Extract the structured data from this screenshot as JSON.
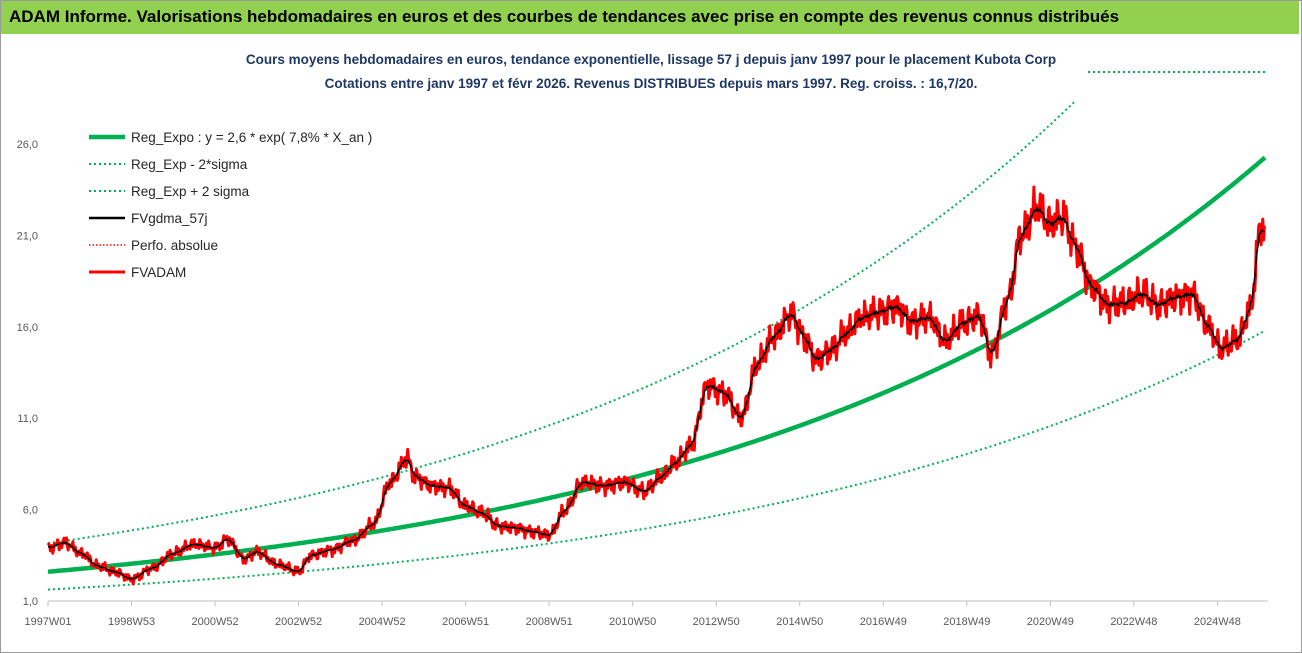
{
  "banner": {
    "text": "ADAM Informe. Valorisations hebdomadaires en euros et des courbes de tendances avec prise en compte des revenus connus distribués"
  },
  "chart_data": {
    "type": "line",
    "title": "Cours moyens hebdomadaires en euros, tendance exponentielle, lissage 57 j depuis janv 1997 pour le placement Kubota Corp",
    "subtitle": "Cotations entre janv 1997 et févr 2026. Revenus DISTRIBUES depuis mars 1997. Reg. croiss. : 16,7/20.",
    "xlabel": "",
    "ylabel": "",
    "x_ticks": [
      "1997W01",
      "1998W53",
      "2000W52",
      "2002W52",
      "2004W52",
      "2006W51",
      "2008W51",
      "2010W50",
      "2012W50",
      "2014W50",
      "2016W49",
      "2018W49",
      "2020W49",
      "2022W48",
      "2024W48"
    ],
    "y_ticks": [
      "1,0",
      "6,0",
      "11,0",
      "16,0",
      "21,0",
      "26,0"
    ],
    "ylim": [
      1,
      26
    ],
    "xlim": [
      1997.0,
      2026.15
    ],
    "grid": false,
    "legend_position": "top-left",
    "regression": {
      "a": 2.6,
      "rate": 0.078,
      "sigma_factor": 1.6
    },
    "series": [
      {
        "name": "Reg_Expo : y = 2,6 * exp( 7,8% *  X_an )",
        "color": "#00b050",
        "style": "solid-thick"
      },
      {
        "name": "Reg_Exp - 2*sigma",
        "color": "#00b050",
        "style": "dotted"
      },
      {
        "name": "Reg_Exp + 2 sigma",
        "color": "#00b050",
        "style": "dotted"
      },
      {
        "name": "FVgdma_57j",
        "color": "#000000",
        "style": "solid"
      },
      {
        "name": "Perfo. absolue",
        "color": "#ff0000",
        "style": "dotted"
      },
      {
        "name": "FVADAM",
        "color": "#ff0000",
        "style": "solid-thick"
      }
    ],
    "price_anchors": {
      "x": [
        1997.0,
        1997.4,
        1997.8,
        1998.2,
        1998.6,
        1999.0,
        1999.5,
        2000.0,
        2000.5,
        2001.0,
        2001.3,
        2001.7,
        2002.0,
        2002.5,
        2003.0,
        2003.3,
        2003.8,
        2004.3,
        2004.8,
        2005.2,
        2005.6,
        2005.8,
        2006.2,
        2006.6,
        2007.0,
        2007.4,
        2007.8,
        2008.2,
        2008.6,
        2009.0,
        2009.4,
        2009.8,
        2010.3,
        2010.8,
        2011.3,
        2011.7,
        2012.0,
        2012.4,
        2012.8,
        2013.2,
        2013.6,
        2014.0,
        2014.4,
        2014.8,
        2015.1,
        2015.4,
        2015.8,
        2016.1,
        2016.5,
        2016.9,
        2017.3,
        2017.7,
        2018.1,
        2018.5,
        2018.9,
        2019.3,
        2019.6,
        2020.0,
        2020.3,
        2020.7,
        2021.0,
        2021.3,
        2021.6,
        2022.0,
        2022.4,
        2022.8,
        2023.2,
        2023.6,
        2024.0,
        2024.4,
        2024.8,
        2025.1,
        2025.5,
        2025.8,
        2026.05
      ],
      "y": [
        3.9,
        4.2,
        3.6,
        2.9,
        2.6,
        2.2,
        2.8,
        3.6,
        4.1,
        3.9,
        4.4,
        3.3,
        3.7,
        3.0,
        2.6,
        3.5,
        3.8,
        4.3,
        5.2,
        7.5,
        8.8,
        7.8,
        7.3,
        7.2,
        6.2,
        5.8,
        5.1,
        5.0,
        4.8,
        4.6,
        6.0,
        7.5,
        7.3,
        7.5,
        7.0,
        7.8,
        8.5,
        9.5,
        12.8,
        12.4,
        11.0,
        14.0,
        15.5,
        16.7,
        15.5,
        14.2,
        14.8,
        15.6,
        16.5,
        16.8,
        17.1,
        16.3,
        16.5,
        15.2,
        16.2,
        16.6,
        14.5,
        17.5,
        21.0,
        22.5,
        21.6,
        22.0,
        20.5,
        18.2,
        17.2,
        17.3,
        17.8,
        17.2,
        17.6,
        17.8,
        16.0,
        14.8,
        15.3,
        17.0,
        21.5
      ]
    }
  }
}
